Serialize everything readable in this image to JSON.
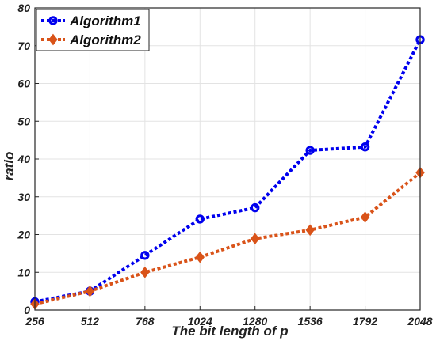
{
  "chart_data": {
    "type": "line",
    "title": "",
    "xlabel": "The bit length of p",
    "ylabel": "ratio",
    "categories": [
      "256",
      "512",
      "768",
      "1024",
      "1280",
      "1536",
      "1792",
      "2048"
    ],
    "ylim": [
      0,
      80
    ],
    "yticks": [
      "0",
      "10",
      "20",
      "30",
      "40",
      "50",
      "60",
      "70",
      "80"
    ],
    "grid": true,
    "legend_position": "top-left",
    "series": [
      {
        "name": "Algorithm1",
        "values": [
          2.2,
          5.0,
          14.5,
          24.1,
          27.1,
          42.3,
          43.2,
          71.6
        ],
        "color": "#0000ee",
        "marker": "circle",
        "line_style": "dotted"
      },
      {
        "name": "Algorithm2",
        "values": [
          1.6,
          5.0,
          10.0,
          14.0,
          18.9,
          21.2,
          24.6,
          36.4
        ],
        "color": "#d95319",
        "marker": "diamond",
        "line_style": "dotted"
      }
    ]
  }
}
